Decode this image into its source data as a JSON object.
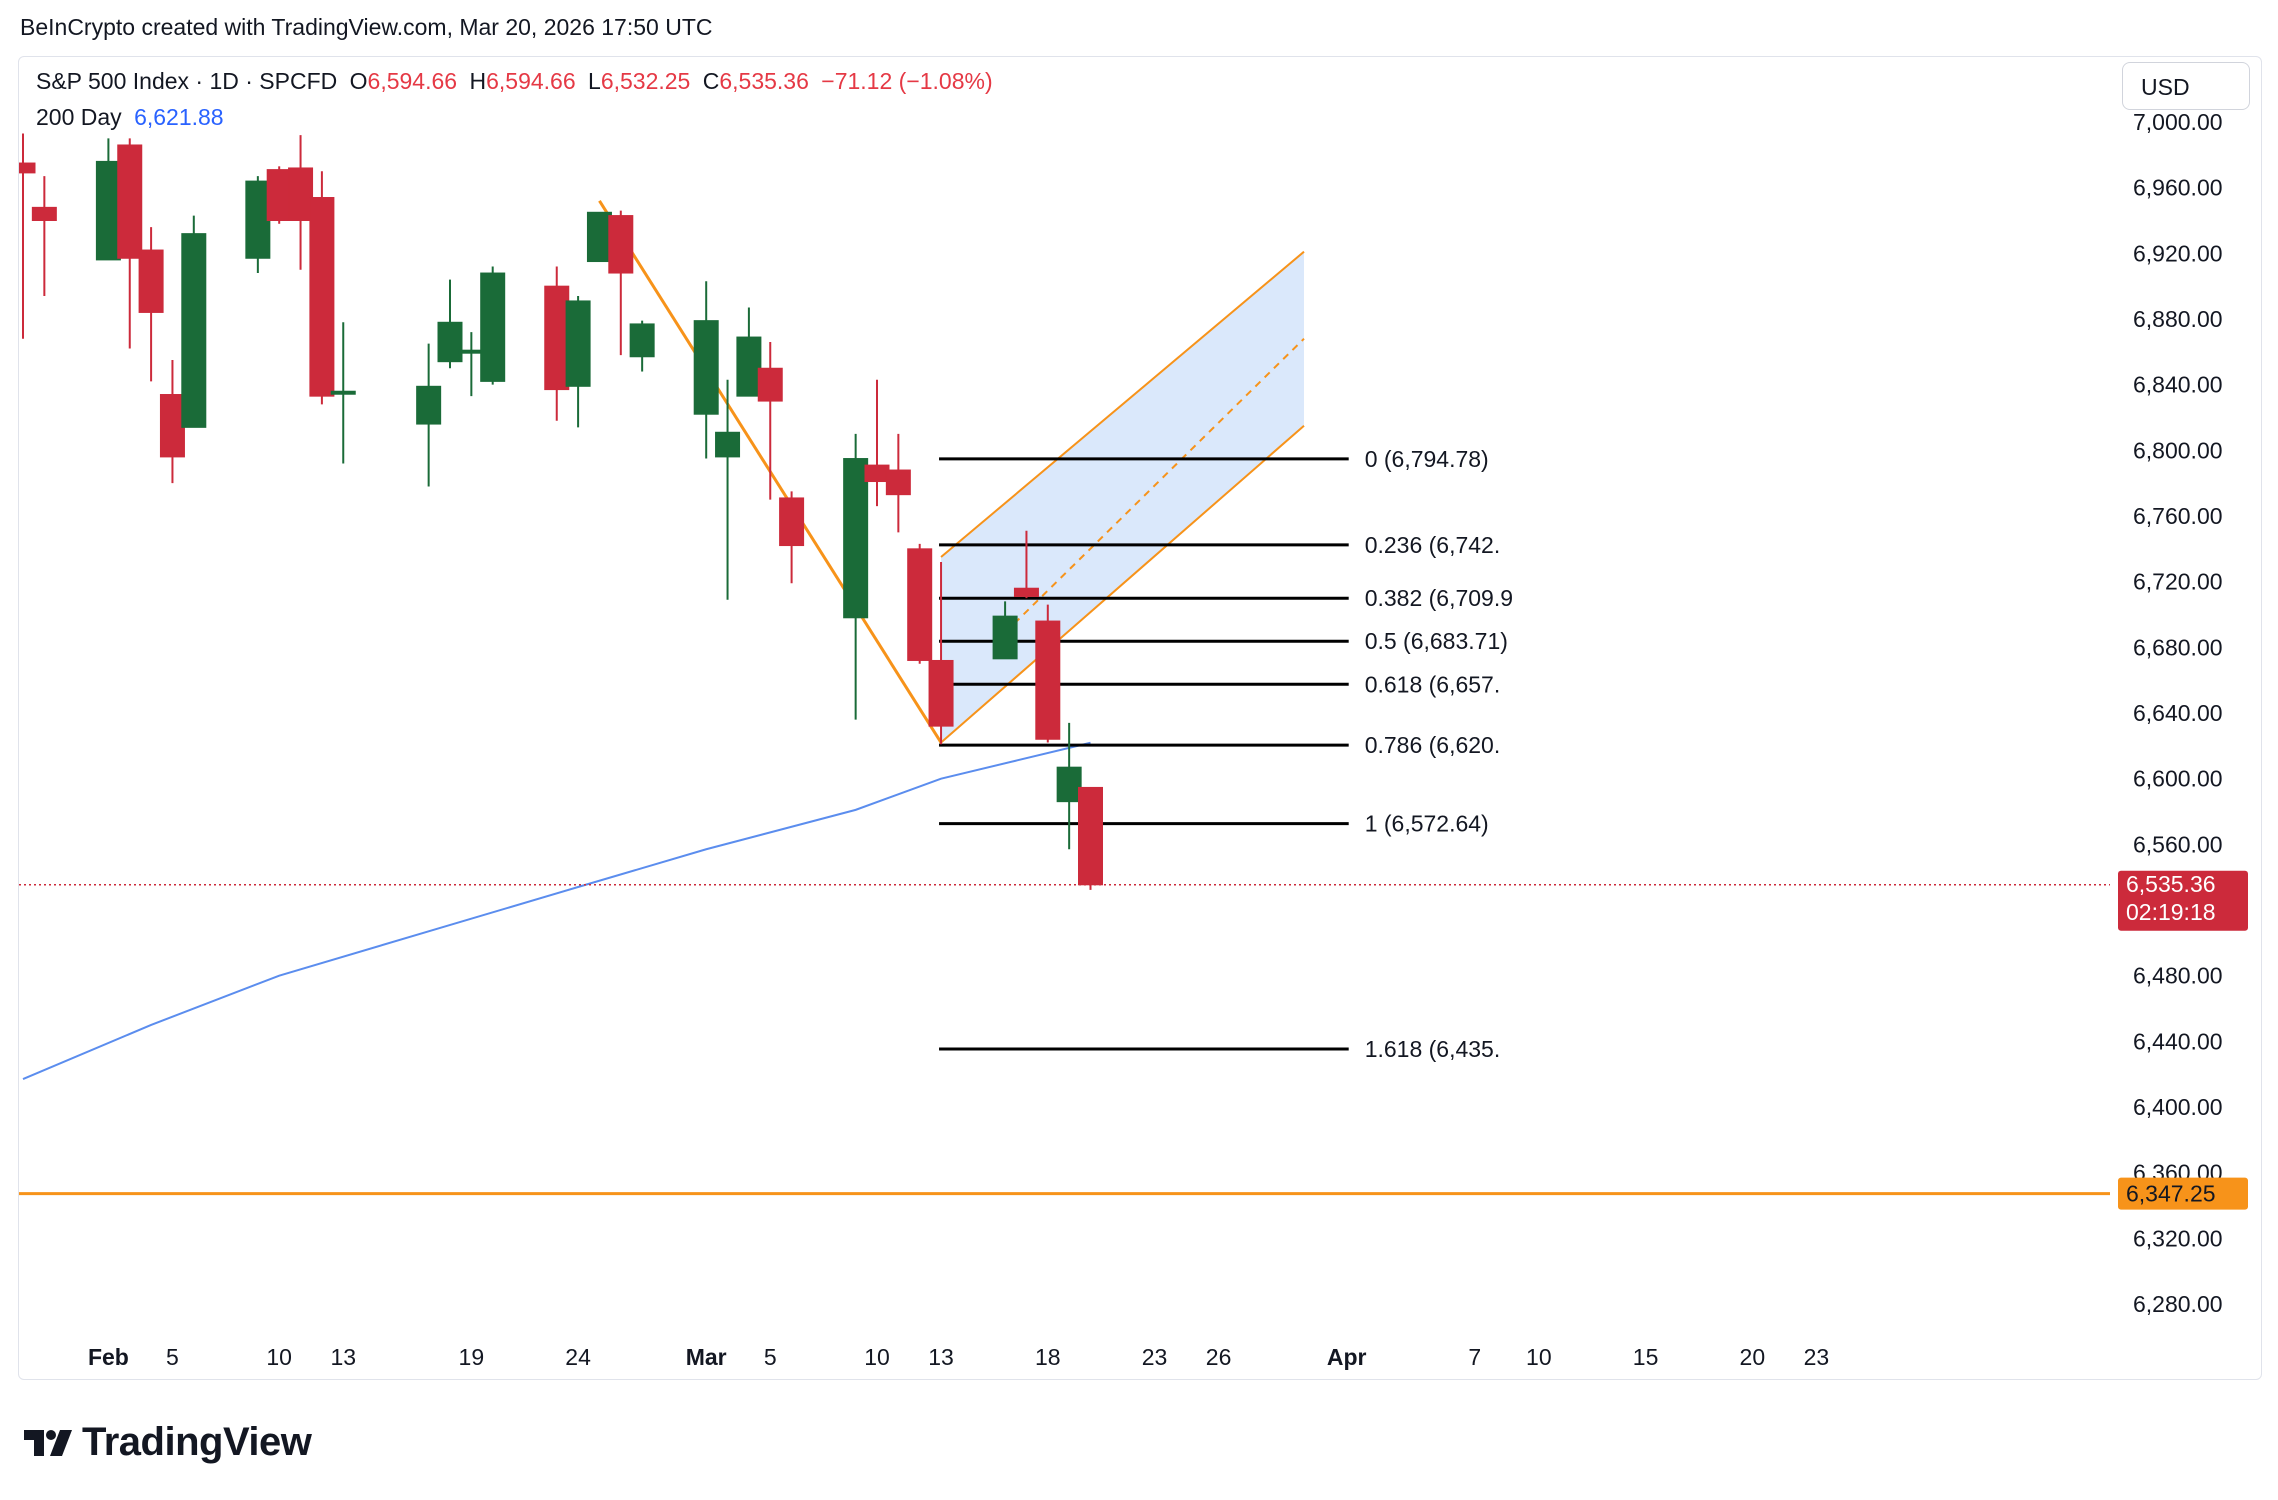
{
  "attribution": "BeInCrypto created with TradingView.com, Mar 20, 2026 17:50 UTC",
  "legend": {
    "symbol": "S&P 500 Index · 1D · SPCFD",
    "o_label": "O",
    "o_value": "6,594.66",
    "h_label": "H",
    "h_value": "6,594.66",
    "l_label": "L",
    "l_value": "6,532.25",
    "c_label": "C",
    "c_value": "6,535.36",
    "change": "−71.12 (−1.08%)",
    "ma_label": "200 Day",
    "ma_value": "6,621.88"
  },
  "currency": "USD",
  "logo_text": "TradingView",
  "colors": {
    "up": "#1a6b38",
    "down": "#cc2a3b",
    "ma": "#5b8dee",
    "fib": "#000000",
    "channel": "#f7931a",
    "channel_fill": "#d6e6fb",
    "support": "#f7931a",
    "price_tag": "#cc2a3b",
    "support_tag": "#f7931a",
    "axis_text": "#131722"
  },
  "chart_data": {
    "type": "candlestick",
    "symbol": "S&P 500 Index",
    "interval": "1D",
    "ylim": [
      6260,
      7010
    ],
    "y_ticks": [
      {
        "value": 7000,
        "label": "7,000.00"
      },
      {
        "value": 6960,
        "label": "6,960.00"
      },
      {
        "value": 6920,
        "label": "6,920.00"
      },
      {
        "value": 6880,
        "label": "6,880.00"
      },
      {
        "value": 6840,
        "label": "6,840.00"
      },
      {
        "value": 6800,
        "label": "6,800.00"
      },
      {
        "value": 6760,
        "label": "6,760.00"
      },
      {
        "value": 6720,
        "label": "6,720.00"
      },
      {
        "value": 6680,
        "label": "6,680.00"
      },
      {
        "value": 6640,
        "label": "6,640.00"
      },
      {
        "value": 6600,
        "label": "6,600.00"
      },
      {
        "value": 6560,
        "label": "6,560.00"
      },
      {
        "value": 6480,
        "label": "6,480.00"
      },
      {
        "value": 6440,
        "label": "6,440.00"
      },
      {
        "value": 6400,
        "label": "6,400.00"
      },
      {
        "value": 6360,
        "label": "6,360.00"
      },
      {
        "value": 6320,
        "label": "6,320.00"
      },
      {
        "value": 6280,
        "label": "6,280.00"
      }
    ],
    "x_ticks": [
      {
        "date": "2026-02-02",
        "label": "Feb",
        "bold": true
      },
      {
        "date": "2026-02-05",
        "label": "5"
      },
      {
        "date": "2026-02-10",
        "label": "10"
      },
      {
        "date": "2026-02-13",
        "label": "13"
      },
      {
        "date": "2026-02-19",
        "label": "19"
      },
      {
        "date": "2026-02-24",
        "label": "24"
      },
      {
        "date": "2026-03-02",
        "label": "Mar",
        "bold": true
      },
      {
        "date": "2026-03-05",
        "label": "5"
      },
      {
        "date": "2026-03-10",
        "label": "10"
      },
      {
        "date": "2026-03-13",
        "label": "13"
      },
      {
        "date": "2026-03-18",
        "label": "18"
      },
      {
        "date": "2026-03-23",
        "label": "23"
      },
      {
        "date": "2026-03-26",
        "label": "26"
      },
      {
        "date": "2026-04-01",
        "label": "Apr",
        "bold": true
      },
      {
        "date": "2026-04-07",
        "label": "7"
      },
      {
        "date": "2026-04-10",
        "label": "10"
      },
      {
        "date": "2026-04-15",
        "label": "15"
      },
      {
        "date": "2026-04-20",
        "label": "20"
      },
      {
        "date": "2026-04-23",
        "label": "23"
      }
    ],
    "candles": [
      {
        "date": "2026-01-29",
        "o": 6975,
        "h": 6993,
        "l": 6868,
        "c": 6969
      },
      {
        "date": "2026-01-30",
        "o": 6948,
        "h": 6967,
        "l": 6894,
        "c": 6940
      },
      {
        "date": "2026-02-02",
        "o": 6916,
        "h": 6990,
        "l": 6916,
        "c": 6976
      },
      {
        "date": "2026-02-03",
        "o": 6986,
        "h": 6990,
        "l": 6862,
        "c": 6917
      },
      {
        "date": "2026-02-04",
        "o": 6922,
        "h": 6936,
        "l": 6842,
        "c": 6884
      },
      {
        "date": "2026-02-05",
        "o": 6834,
        "h": 6855,
        "l": 6780,
        "c": 6796
      },
      {
        "date": "2026-02-06",
        "o": 6814,
        "h": 6943,
        "l": 6814,
        "c": 6932
      },
      {
        "date": "2026-02-09",
        "o": 6917,
        "h": 6967,
        "l": 6908,
        "c": 6964
      },
      {
        "date": "2026-02-10",
        "o": 6971,
        "h": 6973,
        "l": 6938,
        "c": 6940
      },
      {
        "date": "2026-02-11",
        "o": 6972,
        "h": 6992,
        "l": 6910,
        "c": 6940
      },
      {
        "date": "2026-02-12",
        "o": 6954,
        "h": 6970,
        "l": 6828,
        "c": 6833
      },
      {
        "date": "2026-02-13",
        "o": 6836,
        "h": 6878,
        "l": 6792,
        "c": 6836
      },
      {
        "date": "2026-02-17",
        "o": 6816,
        "h": 6865,
        "l": 6778,
        "c": 6839
      },
      {
        "date": "2026-02-18",
        "o": 6854,
        "h": 6904,
        "l": 6850,
        "c": 6878
      },
      {
        "date": "2026-02-19",
        "o": 6861,
        "h": 6872,
        "l": 6833,
        "c": 6861
      },
      {
        "date": "2026-02-20",
        "o": 6842,
        "h": 6912,
        "l": 6840,
        "c": 6908
      },
      {
        "date": "2026-02-23",
        "o": 6900,
        "h": 6912,
        "l": 6818,
        "c": 6837
      },
      {
        "date": "2026-02-24",
        "o": 6839,
        "h": 6894,
        "l": 6814,
        "c": 6891
      },
      {
        "date": "2026-02-25",
        "o": 6915,
        "h": 6945,
        "l": 6915,
        "c": 6945
      },
      {
        "date": "2026-02-26",
        "o": 6943,
        "h": 6946,
        "l": 6858,
        "c": 6908
      },
      {
        "date": "2026-02-27",
        "o": 6857,
        "h": 6879,
        "l": 6848,
        "c": 6877
      },
      {
        "date": "2026-03-02",
        "o": 6822,
        "h": 6903,
        "l": 6795,
        "c": 6879
      },
      {
        "date": "2026-03-03",
        "o": 6796,
        "h": 6843,
        "l": 6709,
        "c": 6811
      },
      {
        "date": "2026-03-04",
        "o": 6833,
        "h": 6887,
        "l": 6833,
        "c": 6869
      },
      {
        "date": "2026-03-05",
        "o": 6850,
        "h": 6866,
        "l": 6770,
        "c": 6830
      },
      {
        "date": "2026-03-06",
        "o": 6771,
        "h": 6775,
        "l": 6719,
        "c": 6742
      },
      {
        "date": "2026-03-09",
        "o": 6698,
        "h": 6810,
        "l": 6636,
        "c": 6795
      },
      {
        "date": "2026-03-10",
        "o": 6791,
        "h": 6843,
        "l": 6766,
        "c": 6781
      },
      {
        "date": "2026-03-11",
        "o": 6788,
        "h": 6810,
        "l": 6750,
        "c": 6773
      },
      {
        "date": "2026-03-12",
        "o": 6740,
        "h": 6743,
        "l": 6670,
        "c": 6672
      },
      {
        "date": "2026-03-13",
        "o": 6672,
        "h": 6732,
        "l": 6621,
        "c": 6632
      },
      {
        "date": "2026-03-16",
        "o": 6673,
        "h": 6708,
        "l": 6673,
        "c": 6699
      },
      {
        "date": "2026-03-17",
        "o": 6716,
        "h": 6751,
        "l": 6710,
        "c": 6711
      },
      {
        "date": "2026-03-18",
        "o": 6696,
        "h": 6706,
        "l": 6622,
        "c": 6624
      },
      {
        "date": "2026-03-19",
        "o": 6586,
        "h": 6634,
        "l": 6557,
        "c": 6607
      },
      {
        "date": "2026-03-20",
        "o": 6594.66,
        "h": 6594.66,
        "l": 6532.25,
        "c": 6535.36
      }
    ],
    "moving_average": {
      "name": "200 Day",
      "points": [
        {
          "date": "2026-01-29",
          "value": 6417
        },
        {
          "date": "2026-02-04",
          "value": 6450
        },
        {
          "date": "2026-02-10",
          "value": 6480
        },
        {
          "date": "2026-02-17",
          "value": 6507
        },
        {
          "date": "2026-02-24",
          "value": 6534
        },
        {
          "date": "2026-03-02",
          "value": 6557
        },
        {
          "date": "2026-03-09",
          "value": 6581
        },
        {
          "date": "2026-03-13",
          "value": 6600
        },
        {
          "date": "2026-03-20",
          "value": 6621.88
        }
      ]
    },
    "fibonacci": {
      "start_date": "2026-03-13",
      "end_date": "2026-04-01",
      "levels": [
        {
          "value": 6794.78,
          "label": "0 (6,794.78)"
        },
        {
          "value": 6742.4,
          "label": "0.236 (6,742."
        },
        {
          "value": 6709.9,
          "label": "0.382 (6,709.9"
        },
        {
          "value": 6683.71,
          "label": "0.5 (6,683.71)"
        },
        {
          "value": 6657.5,
          "label": "0.618 (6,657."
        },
        {
          "value": 6620.4,
          "label": "0.786 (6,620."
        },
        {
          "value": 6572.64,
          "label": "1 (6,572.64)"
        },
        {
          "value": 6435.3,
          "label": "1.618 (6,435."
        }
      ]
    },
    "downtrend_line": [
      {
        "date": "2026-02-25",
        "value": 6952
      },
      {
        "date": "2026-03-13",
        "value": 6622
      }
    ],
    "parallel_channel": {
      "lower": [
        {
          "date": "2026-03-13",
          "value": 6622
        },
        {
          "date": "2026-03-30",
          "value": 6815
        }
      ],
      "upper": [
        {
          "date": "2026-03-13",
          "value": 6735
        },
        {
          "date": "2026-03-30",
          "value": 6921
        }
      ],
      "mid": [
        {
          "date": "2026-03-16",
          "value": 6689
        },
        {
          "date": "2026-03-30",
          "value": 6868
        }
      ]
    },
    "support_level": {
      "value": 6347.25,
      "label": "6,347.25"
    },
    "last_price": {
      "value": 6535.36,
      "label": "6,535.36",
      "countdown": "02:19:18"
    }
  }
}
